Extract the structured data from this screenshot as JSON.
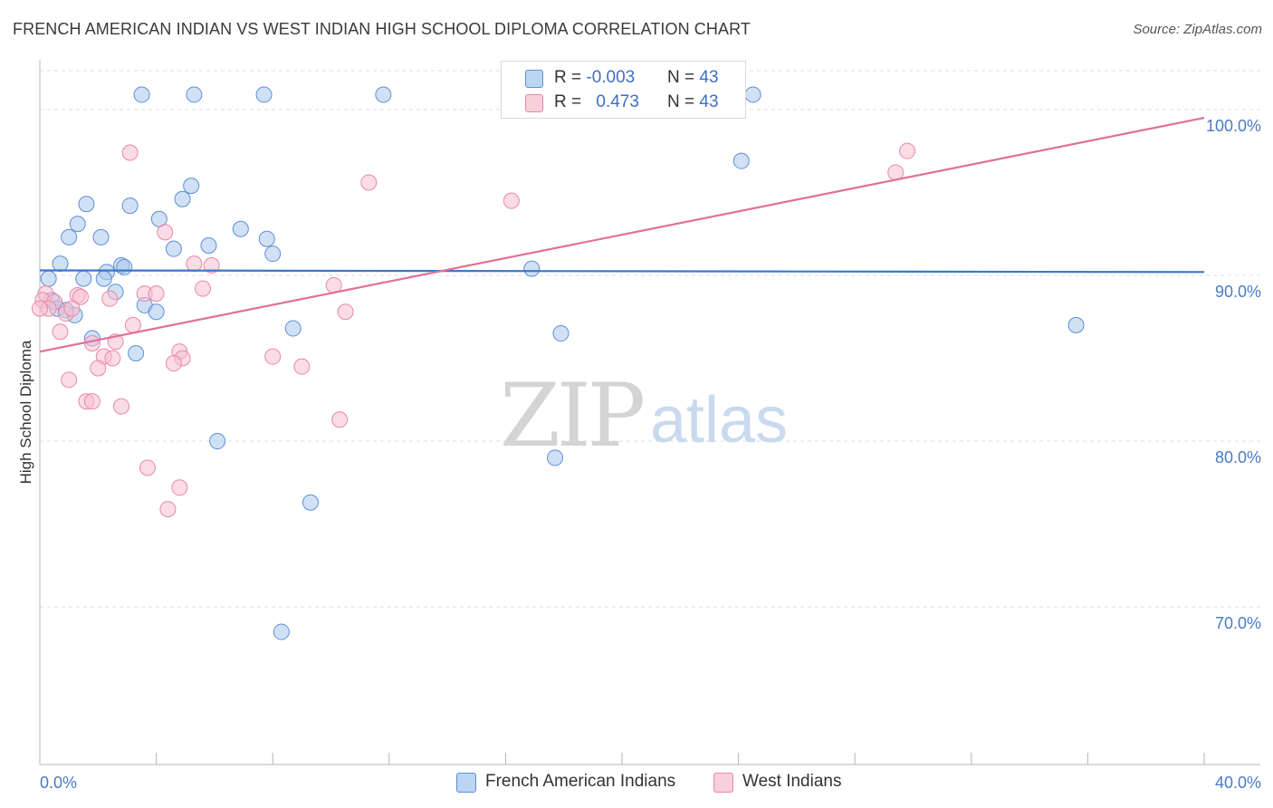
{
  "header": {
    "title": "FRENCH AMERICAN INDIAN VS WEST INDIAN HIGH SCHOOL DIPLOMA CORRELATION CHART",
    "source": "Source: ZipAtlas.com"
  },
  "watermark": {
    "zip": "ZIP",
    "atlas": "atlas"
  },
  "legend_top": [
    {
      "r_label": "R = ",
      "r_value": "-0.003",
      "n_label": "N = ",
      "n_value": "43"
    },
    {
      "r_label": "R = ",
      "r_value": "0.473",
      "n_label": "N = ",
      "n_value": "43"
    }
  ],
  "legend_bottom": [
    "French American Indians",
    "West Indians"
  ],
  "colors": {
    "blue_fill": "#a9c8ef",
    "blue_stroke": "#5e8fd3",
    "blue_line": "#3a78c9",
    "pink_fill": "#f6bfd0",
    "pink_stroke": "#e888a8",
    "pink_line": "#e0709a",
    "grid": "#dddddd",
    "axis": "#b5b5b5",
    "tick_text": "#4a7ac8"
  },
  "chart_data": {
    "type": "scatter",
    "title": "FRENCH AMERICAN INDIAN VS WEST INDIAN HIGH SCHOOL DIPLOMA CORRELATION CHART",
    "xlabel": "",
    "ylabel": "High School Diploma",
    "xlim": [
      0,
      40
    ],
    "ylim": [
      60.5,
      103
    ],
    "x_tick_labels": [
      "0.0%",
      "40.0%"
    ],
    "y_ticks": [
      70,
      80,
      90,
      100
    ],
    "y_tick_labels": [
      "70.0%",
      "80.0%",
      "90.0%",
      "100.0%"
    ],
    "grid": true,
    "series": [
      {
        "name": "French American Indians",
        "r": -0.003,
        "n": 43,
        "trend": {
          "x": [
            0,
            40
          ],
          "y": [
            90.3,
            90.2
          ]
        },
        "points": [
          [
            3.5,
            100.9
          ],
          [
            5.3,
            100.9
          ],
          [
            7.7,
            100.9
          ],
          [
            11.8,
            100.9
          ],
          [
            24.5,
            100.9
          ],
          [
            24.1,
            96.9
          ],
          [
            5.2,
            95.4
          ],
          [
            1.6,
            94.3
          ],
          [
            3.1,
            94.2
          ],
          [
            4.9,
            94.6
          ],
          [
            4.1,
            93.4
          ],
          [
            1.3,
            93.1
          ],
          [
            6.9,
            92.8
          ],
          [
            1.0,
            92.3
          ],
          [
            2.1,
            92.3
          ],
          [
            7.8,
            92.2
          ],
          [
            4.6,
            91.6
          ],
          [
            5.8,
            91.8
          ],
          [
            8.0,
            91.3
          ],
          [
            0.7,
            90.7
          ],
          [
            2.8,
            90.6
          ],
          [
            2.9,
            90.5
          ],
          [
            2.3,
            90.2
          ],
          [
            16.9,
            90.4
          ],
          [
            0.3,
            89.8
          ],
          [
            1.5,
            89.8
          ],
          [
            2.2,
            89.8
          ],
          [
            2.6,
            89.0
          ],
          [
            0.4,
            88.5
          ],
          [
            0.6,
            88.0
          ],
          [
            3.6,
            88.2
          ],
          [
            0.9,
            87.9
          ],
          [
            1.2,
            87.6
          ],
          [
            4.0,
            87.8
          ],
          [
            8.7,
            86.8
          ],
          [
            1.8,
            86.2
          ],
          [
            17.9,
            86.5
          ],
          [
            35.6,
            87.0
          ],
          [
            3.3,
            85.3
          ],
          [
            6.1,
            80.0
          ],
          [
            17.7,
            79.0
          ],
          [
            9.3,
            76.3
          ],
          [
            8.3,
            68.5
          ]
        ]
      },
      {
        "name": "West Indians",
        "r": 0.473,
        "n": 43,
        "trend": {
          "x": [
            0,
            40
          ],
          "y": [
            85.4,
            99.5
          ]
        },
        "points": [
          [
            3.1,
            97.4
          ],
          [
            29.8,
            97.5
          ],
          [
            29.4,
            96.2
          ],
          [
            11.3,
            95.6
          ],
          [
            16.2,
            94.5
          ],
          [
            4.3,
            92.6
          ],
          [
            5.3,
            90.7
          ],
          [
            5.9,
            90.6
          ],
          [
            10.1,
            89.4
          ],
          [
            5.6,
            89.2
          ],
          [
            0.2,
            88.9
          ],
          [
            1.3,
            88.8
          ],
          [
            2.4,
            88.6
          ],
          [
            3.6,
            88.9
          ],
          [
            4.0,
            88.9
          ],
          [
            0.1,
            88.5
          ],
          [
            0.5,
            88.4
          ],
          [
            1.4,
            88.7
          ],
          [
            0.3,
            88.0
          ],
          [
            0.9,
            87.7
          ],
          [
            1.1,
            88.0
          ],
          [
            10.5,
            87.8
          ],
          [
            3.2,
            87.0
          ],
          [
            0.7,
            86.6
          ],
          [
            1.8,
            85.9
          ],
          [
            2.6,
            86.0
          ],
          [
            4.8,
            85.4
          ],
          [
            4.9,
            85.0
          ],
          [
            2.2,
            85.1
          ],
          [
            2.5,
            85.0
          ],
          [
            8.0,
            85.1
          ],
          [
            4.6,
            84.7
          ],
          [
            2.0,
            84.4
          ],
          [
            9.0,
            84.5
          ],
          [
            1.0,
            83.7
          ],
          [
            1.6,
            82.4
          ],
          [
            1.8,
            82.4
          ],
          [
            2.8,
            82.1
          ],
          [
            10.3,
            81.3
          ],
          [
            3.7,
            78.4
          ],
          [
            4.8,
            77.2
          ],
          [
            4.4,
            75.9
          ],
          [
            0.0,
            88.0
          ]
        ]
      }
    ]
  }
}
